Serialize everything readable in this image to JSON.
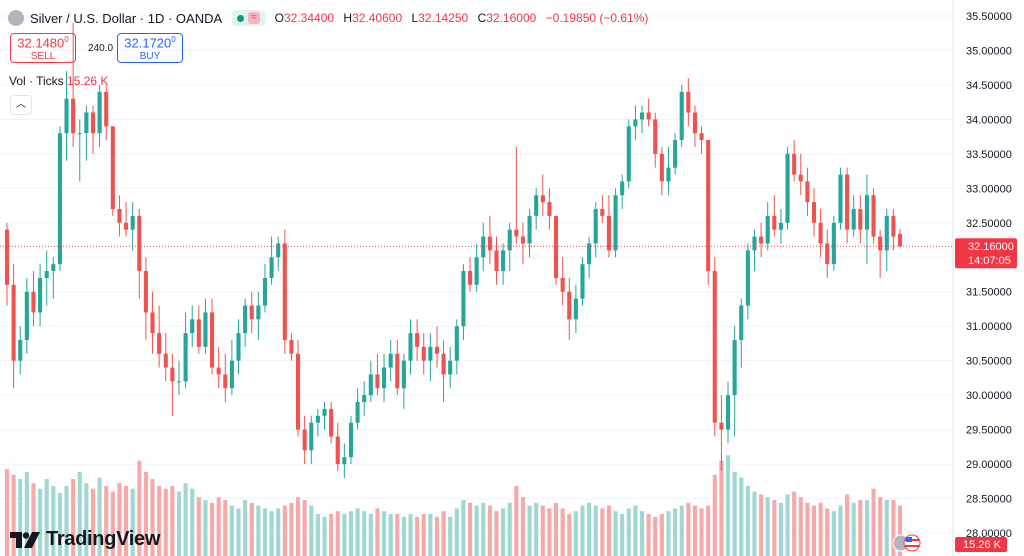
{
  "header": {
    "title": "Silver / U.S. Dollar · 1D · OANDA",
    "ohlc": [
      {
        "k": "O",
        "v": "32.34400"
      },
      {
        "k": "H",
        "v": "32.40600"
      },
      {
        "k": "L",
        "v": "32.14250"
      },
      {
        "k": "C",
        "v": "32.16000"
      }
    ],
    "change": "−0.19850 (−0.61%)"
  },
  "trade": {
    "sell_price": "32.1480",
    "sell_sup": "0",
    "sell_label": "SELL",
    "spread": "240.0",
    "buy_price": "32.1720",
    "buy_sup": "0",
    "buy_label": "BUY"
  },
  "volume_legend": {
    "label": "Vol · Ticks",
    "value": "15.26 K"
  },
  "branding": {
    "name": "TradingView"
  },
  "colors": {
    "up": "#26a69a",
    "down": "#ef5350",
    "vol_up": "#9fd8d2",
    "vol_down": "#f7a9a7",
    "price_line": "#f23645"
  },
  "chart_data": {
    "type": "candlestick",
    "symbol": "Silver / U.S. Dollar",
    "interval": "1D",
    "y_ticks": [
      "35.50000",
      "35.00000",
      "34.50000",
      "34.00000",
      "33.50000",
      "33.00000",
      "32.50000",
      "32.00000",
      "31.50000",
      "31.00000",
      "30.50000",
      "30.00000",
      "29.50000",
      "29.00000",
      "28.50000",
      "28.00000"
    ],
    "ylim": [
      28.0,
      35.5
    ],
    "last_price": "32.16000",
    "countdown": "14:07:05",
    "volume_last": "15.26 K",
    "candles": [
      [
        32.4,
        32.5,
        31.3,
        31.6
      ],
      [
        31.6,
        31.9,
        30.1,
        30.5
      ],
      [
        30.5,
        31.0,
        30.3,
        30.8
      ],
      [
        30.8,
        31.7,
        30.6,
        31.5
      ],
      [
        31.5,
        31.8,
        31.0,
        31.2
      ],
      [
        31.2,
        31.9,
        31.0,
        31.7
      ],
      [
        31.7,
        32.1,
        31.3,
        31.8
      ],
      [
        31.8,
        32.0,
        31.4,
        31.9
      ],
      [
        31.9,
        33.9,
        31.8,
        33.8
      ],
      [
        33.8,
        34.7,
        33.4,
        34.3
      ],
      [
        34.3,
        35.4,
        33.6,
        33.8
      ],
      [
        33.8,
        34.0,
        33.1,
        33.8
      ],
      [
        33.8,
        34.2,
        33.4,
        34.1
      ],
      [
        34.1,
        34.2,
        33.5,
        33.8
      ],
      [
        33.8,
        34.5,
        33.6,
        34.4
      ],
      [
        34.4,
        34.5,
        33.7,
        33.9
      ],
      [
        33.9,
        33.9,
        32.6,
        32.7
      ],
      [
        32.7,
        32.9,
        32.3,
        32.5
      ],
      [
        32.5,
        32.8,
        32.3,
        32.4
      ],
      [
        32.4,
        32.8,
        32.1,
        32.6
      ],
      [
        32.6,
        32.7,
        31.4,
        31.8
      ],
      [
        31.8,
        32.0,
        30.8,
        31.2
      ],
      [
        31.2,
        31.5,
        30.6,
        30.9
      ],
      [
        30.9,
        31.3,
        30.4,
        30.6
      ],
      [
        30.6,
        30.9,
        30.2,
        30.4
      ],
      [
        30.4,
        30.6,
        29.7,
        30.2
      ],
      [
        30.2,
        30.5,
        30.0,
        30.2
      ],
      [
        30.2,
        31.2,
        30.1,
        30.9
      ],
      [
        30.9,
        31.3,
        30.7,
        31.1
      ],
      [
        31.1,
        31.3,
        30.6,
        30.7
      ],
      [
        30.7,
        31.4,
        30.6,
        31.2
      ],
      [
        31.2,
        31.4,
        30.3,
        30.4
      ],
      [
        30.4,
        30.7,
        30.1,
        30.3
      ],
      [
        30.3,
        30.6,
        29.9,
        30.1
      ],
      [
        30.1,
        30.8,
        30.0,
        30.5
      ],
      [
        30.5,
        31.1,
        30.3,
        30.9
      ],
      [
        30.9,
        31.4,
        30.7,
        31.3
      ],
      [
        31.3,
        31.5,
        30.9,
        31.1
      ],
      [
        31.1,
        31.5,
        30.8,
        31.3
      ],
      [
        31.3,
        31.9,
        31.2,
        31.7
      ],
      [
        31.7,
        32.3,
        31.6,
        32.0
      ],
      [
        32.0,
        32.3,
        31.8,
        32.2
      ],
      [
        32.2,
        32.4,
        30.6,
        30.8
      ],
      [
        30.8,
        30.9,
        30.5,
        30.6
      ],
      [
        30.6,
        30.8,
        29.4,
        29.5
      ],
      [
        29.5,
        29.7,
        29.0,
        29.2
      ],
      [
        29.2,
        29.7,
        29.0,
        29.6
      ],
      [
        29.6,
        29.8,
        29.4,
        29.7
      ],
      [
        29.7,
        29.9,
        29.5,
        29.8
      ],
      [
        29.8,
        29.9,
        29.3,
        29.4
      ],
      [
        29.4,
        29.6,
        28.9,
        29.0
      ],
      [
        29.0,
        29.3,
        28.8,
        29.1
      ],
      [
        29.1,
        29.7,
        29.0,
        29.6
      ],
      [
        29.6,
        30.1,
        29.5,
        29.9
      ],
      [
        29.9,
        30.2,
        29.7,
        30.0
      ],
      [
        30.0,
        30.5,
        29.9,
        30.3
      ],
      [
        30.3,
        30.6,
        30.0,
        30.1
      ],
      [
        30.1,
        30.6,
        29.9,
        30.4
      ],
      [
        30.4,
        30.8,
        30.2,
        30.6
      ],
      [
        30.6,
        30.8,
        30.0,
        30.1
      ],
      [
        30.1,
        30.6,
        29.8,
        30.5
      ],
      [
        30.5,
        31.1,
        30.3,
        30.9
      ],
      [
        30.9,
        31.1,
        30.5,
        30.7
      ],
      [
        30.7,
        30.9,
        30.3,
        30.5
      ],
      [
        30.5,
        30.9,
        30.2,
        30.7
      ],
      [
        30.7,
        31.0,
        30.4,
        30.6
      ],
      [
        30.6,
        30.8,
        29.9,
        30.3
      ],
      [
        30.3,
        30.7,
        30.1,
        30.5
      ],
      [
        30.5,
        31.1,
        30.3,
        31.0
      ],
      [
        31.0,
        31.9,
        30.8,
        31.8
      ],
      [
        31.8,
        32.0,
        31.5,
        31.6
      ],
      [
        31.6,
        32.2,
        31.5,
        32.0
      ],
      [
        32.0,
        32.5,
        31.8,
        32.3
      ],
      [
        32.3,
        32.6,
        31.9,
        32.1
      ],
      [
        32.1,
        32.3,
        31.6,
        31.8
      ],
      [
        31.8,
        32.2,
        31.6,
        32.1
      ],
      [
        32.1,
        32.5,
        31.8,
        32.4
      ],
      [
        32.4,
        33.6,
        32.2,
        32.3
      ],
      [
        32.3,
        32.5,
        31.9,
        32.2
      ],
      [
        32.2,
        32.7,
        32.0,
        32.6
      ],
      [
        32.6,
        33.0,
        32.4,
        32.9
      ],
      [
        32.9,
        33.2,
        32.6,
        32.8
      ],
      [
        32.8,
        33.0,
        32.4,
        32.6
      ],
      [
        32.6,
        32.6,
        31.6,
        31.7
      ],
      [
        31.7,
        32.0,
        31.3,
        31.5
      ],
      [
        31.5,
        31.7,
        30.8,
        31.1
      ],
      [
        31.1,
        31.6,
        30.9,
        31.4
      ],
      [
        31.4,
        32.0,
        31.3,
        31.9
      ],
      [
        31.9,
        32.3,
        31.7,
        32.2
      ],
      [
        32.2,
        32.8,
        32.0,
        32.7
      ],
      [
        32.7,
        32.9,
        32.5,
        32.6
      ],
      [
        32.6,
        32.9,
        32.0,
        32.1
      ],
      [
        32.1,
        33.0,
        32.0,
        32.9
      ],
      [
        32.9,
        33.2,
        32.7,
        33.1
      ],
      [
        33.1,
        34.0,
        33.0,
        33.9
      ],
      [
        33.9,
        34.2,
        33.7,
        34.0
      ],
      [
        34.0,
        34.2,
        33.8,
        34.1
      ],
      [
        34.1,
        34.3,
        33.9,
        34.0
      ],
      [
        34.0,
        34.1,
        33.3,
        33.5
      ],
      [
        33.5,
        33.6,
        32.9,
        33.1
      ],
      [
        33.1,
        33.6,
        32.9,
        33.3
      ],
      [
        33.3,
        33.8,
        33.2,
        33.7
      ],
      [
        33.7,
        34.5,
        33.6,
        34.4
      ],
      [
        34.4,
        34.6,
        33.9,
        34.1
      ],
      [
        34.1,
        34.2,
        33.6,
        33.8
      ],
      [
        33.8,
        33.9,
        33.5,
        33.7
      ],
      [
        33.7,
        33.7,
        31.6,
        31.8
      ],
      [
        31.8,
        32.0,
        29.4,
        29.6
      ],
      [
        29.6,
        30.0,
        28.9,
        29.5
      ],
      [
        29.5,
        30.2,
        29.3,
        30.0
      ],
      [
        30.0,
        31.0,
        29.4,
        30.8
      ],
      [
        30.8,
        31.4,
        30.4,
        31.3
      ],
      [
        31.3,
        32.2,
        31.1,
        32.1
      ],
      [
        32.1,
        32.4,
        31.8,
        32.3
      ],
      [
        32.3,
        32.5,
        32.0,
        32.2
      ],
      [
        32.2,
        32.8,
        32.1,
        32.6
      ],
      [
        32.6,
        32.9,
        32.3,
        32.4
      ],
      [
        32.4,
        32.7,
        32.2,
        32.5
      ],
      [
        32.5,
        33.6,
        32.4,
        33.5
      ],
      [
        33.5,
        33.7,
        33.1,
        33.2
      ],
      [
        33.2,
        33.5,
        32.9,
        33.1
      ],
      [
        33.1,
        33.3,
        32.6,
        32.8
      ],
      [
        32.8,
        33.0,
        32.3,
        32.5
      ],
      [
        32.5,
        32.7,
        32.0,
        32.2
      ],
      [
        32.2,
        32.4,
        31.7,
        31.9
      ],
      [
        31.9,
        32.6,
        31.8,
        32.5
      ],
      [
        32.5,
        33.3,
        32.4,
        33.2
      ],
      [
        33.2,
        33.3,
        32.2,
        32.4
      ],
      [
        32.4,
        32.9,
        32.3,
        32.7
      ],
      [
        32.7,
        32.9,
        32.2,
        32.4
      ],
      [
        32.4,
        33.2,
        31.9,
        32.9
      ],
      [
        32.9,
        33.0,
        32.2,
        32.3
      ],
      [
        32.3,
        32.4,
        31.7,
        32.1
      ],
      [
        32.1,
        32.7,
        31.8,
        32.6
      ],
      [
        32.6,
        32.7,
        32.1,
        32.3
      ],
      [
        32.34,
        32.41,
        32.14,
        32.16
      ]
    ],
    "volume": [
      0.62,
      0.58,
      0.55,
      0.6,
      0.52,
      0.48,
      0.55,
      0.5,
      0.45,
      0.5,
      0.55,
      0.6,
      0.52,
      0.48,
      0.56,
      0.5,
      0.46,
      0.52,
      0.5,
      0.48,
      0.68,
      0.6,
      0.55,
      0.5,
      0.48,
      0.5,
      0.46,
      0.52,
      0.48,
      0.42,
      0.4,
      0.38,
      0.42,
      0.4,
      0.36,
      0.34,
      0.4,
      0.38,
      0.36,
      0.34,
      0.32,
      0.34,
      0.36,
      0.38,
      0.42,
      0.4,
      0.36,
      0.3,
      0.28,
      0.3,
      0.32,
      0.3,
      0.32,
      0.34,
      0.32,
      0.3,
      0.34,
      0.32,
      0.3,
      0.3,
      0.28,
      0.3,
      0.28,
      0.3,
      0.3,
      0.28,
      0.32,
      0.28,
      0.34,
      0.4,
      0.38,
      0.36,
      0.38,
      0.36,
      0.32,
      0.34,
      0.38,
      0.5,
      0.42,
      0.36,
      0.38,
      0.36,
      0.34,
      0.38,
      0.34,
      0.3,
      0.32,
      0.36,
      0.38,
      0.36,
      0.34,
      0.36,
      0.32,
      0.3,
      0.34,
      0.36,
      0.32,
      0.3,
      0.28,
      0.3,
      0.32,
      0.34,
      0.36,
      0.38,
      0.36,
      0.34,
      0.36,
      0.58,
      0.68,
      0.72,
      0.6,
      0.56,
      0.5,
      0.46,
      0.44,
      0.42,
      0.4,
      0.38,
      0.44,
      0.46,
      0.42,
      0.38,
      0.36,
      0.38,
      0.34,
      0.32,
      0.36,
      0.44,
      0.38,
      0.4,
      0.4,
      0.48,
      0.42,
      0.4,
      0.4,
      0.36,
      0.14
    ]
  }
}
